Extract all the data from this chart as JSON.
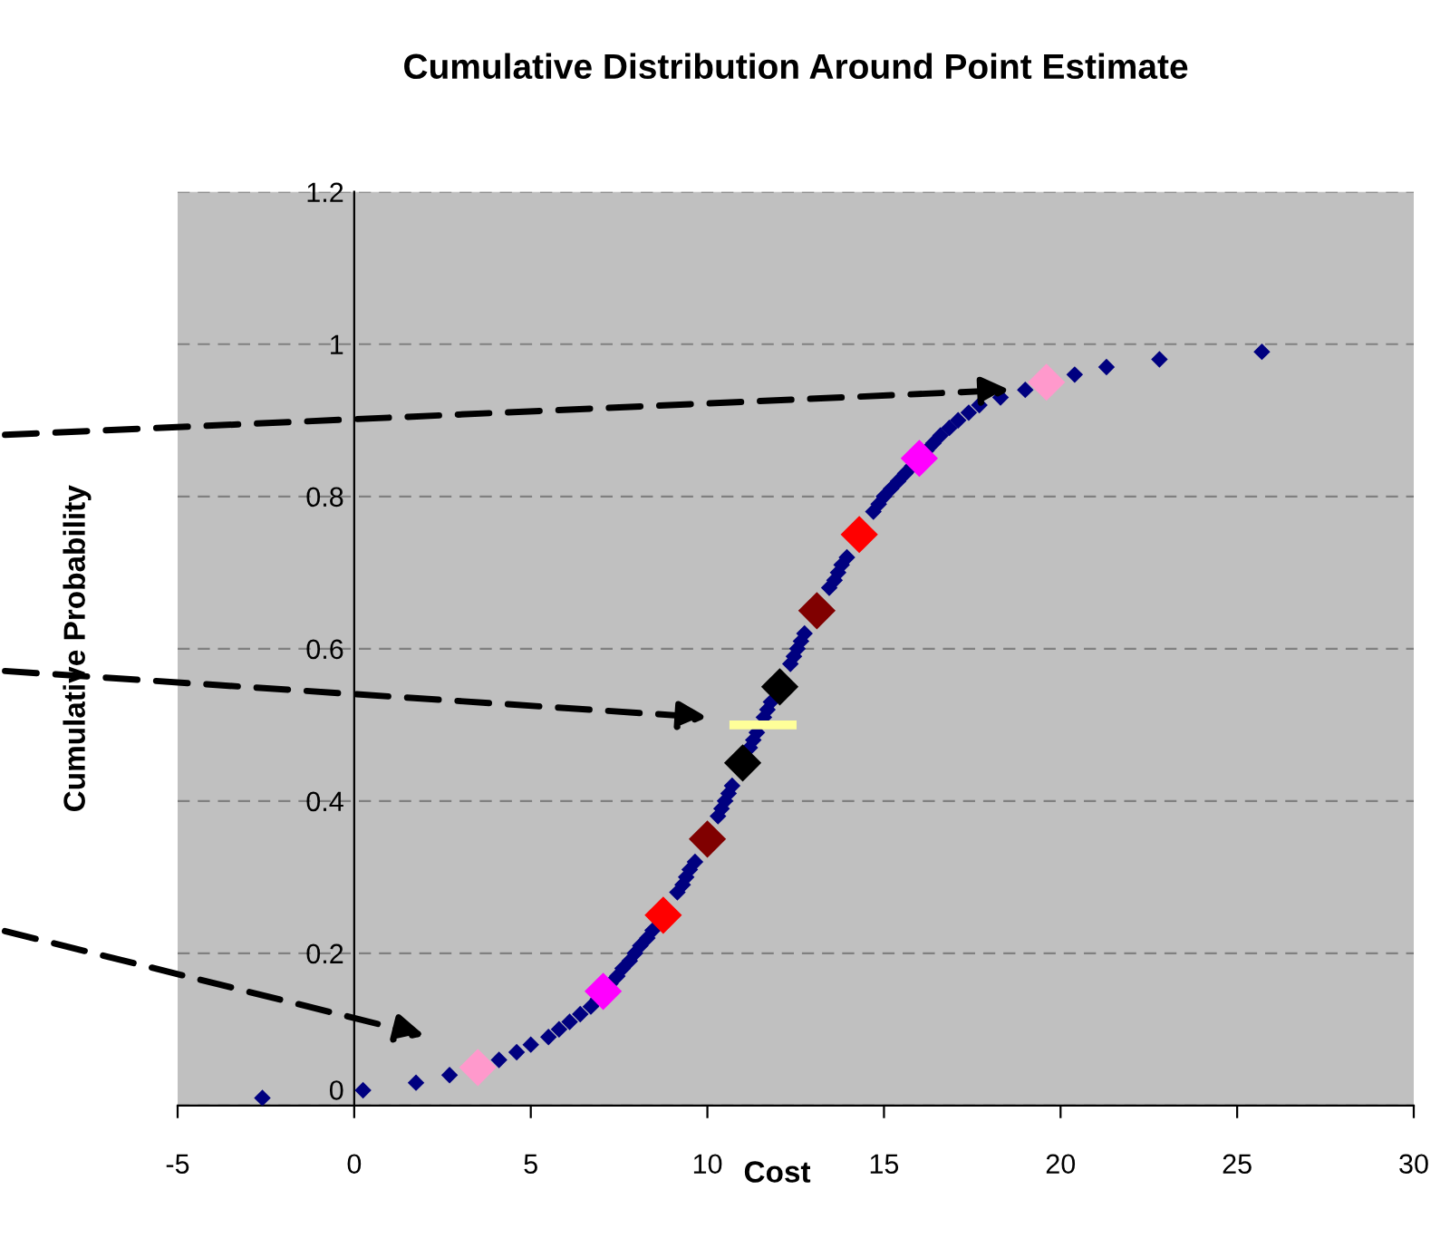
{
  "chart_data": {
    "type": "scatter",
    "title": "Cumulative Distribution Around Point Estimate",
    "xlabel": "Cost",
    "ylabel": "Cumulative Probability",
    "xlim": [
      -5,
      30
    ],
    "xticks": [
      -5,
      0,
      5,
      10,
      15,
      20,
      25,
      30
    ],
    "ylim": [
      0,
      1.2
    ],
    "yticks": [
      0,
      0.2,
      0.4,
      0.6,
      0.8,
      1,
      1.2
    ],
    "grid": "y",
    "marker": "diamond",
    "series": [
      {
        "color": "#000080",
        "x": [
          -2.6,
          0.25,
          1.75,
          2.7,
          4.1,
          4.6,
          5.0,
          5.5,
          5.8,
          6.1,
          6.4,
          6.7,
          6.9,
          7.25,
          7.45,
          7.6,
          7.8,
          7.95,
          8.1,
          8.3,
          8.45,
          9.15,
          9.3,
          9.4,
          9.5,
          9.65,
          10.3,
          10.4,
          10.5,
          10.6,
          10.7,
          11.2,
          11.3,
          11.4,
          11.6,
          11.7,
          11.8,
          12.35,
          12.45,
          12.55,
          12.65,
          12.75,
          13.45,
          13.6,
          13.7,
          13.8,
          13.95,
          14.7,
          14.85,
          15.0,
          15.2,
          15.4,
          15.6,
          15.8,
          16.2,
          16.4,
          16.6,
          16.85,
          17.1,
          17.4,
          17.7,
          18.3,
          19.0,
          20.4,
          21.3,
          22.8,
          25.7
        ],
        "values": [
          0.01,
          0.02,
          0.03,
          0.04,
          0.06,
          0.07,
          0.08,
          0.09,
          0.1,
          0.11,
          0.12,
          0.13,
          0.14,
          0.16,
          0.17,
          0.18,
          0.19,
          0.2,
          0.21,
          0.22,
          0.23,
          0.28,
          0.29,
          0.3,
          0.31,
          0.32,
          0.38,
          0.39,
          0.4,
          0.41,
          0.42,
          0.47,
          0.48,
          0.49,
          0.51,
          0.52,
          0.53,
          0.58,
          0.59,
          0.6,
          0.61,
          0.62,
          0.68,
          0.69,
          0.7,
          0.71,
          0.72,
          0.78,
          0.79,
          0.8,
          0.81,
          0.82,
          0.83,
          0.84,
          0.86,
          0.87,
          0.88,
          0.89,
          0.9,
          0.91,
          0.92,
          0.93,
          0.94,
          0.96,
          0.97,
          0.98,
          0.99
        ]
      },
      {
        "color": "#ff99cc",
        "x": [
          3.5,
          19.6
        ],
        "values": [
          0.05,
          0.95
        ]
      },
      {
        "color": "#ff00ff",
        "x": [
          7.05,
          16.0
        ],
        "values": [
          0.15,
          0.85
        ]
      },
      {
        "color": "#ff0000",
        "x": [
          8.75,
          14.3
        ],
        "values": [
          0.25,
          0.75
        ]
      },
      {
        "color": "#800000",
        "x": [
          10.0,
          13.1
        ],
        "values": [
          0.35,
          0.65
        ]
      },
      {
        "color": "#000000",
        "x": [
          11.0,
          12.05
        ],
        "values": [
          0.45,
          0.55
        ]
      },
      {
        "type": "line",
        "marker": "none",
        "color": "#ffff99",
        "x": [
          10.75,
          12.4
        ],
        "values": [
          0.5,
          0.5
        ]
      }
    ]
  }
}
